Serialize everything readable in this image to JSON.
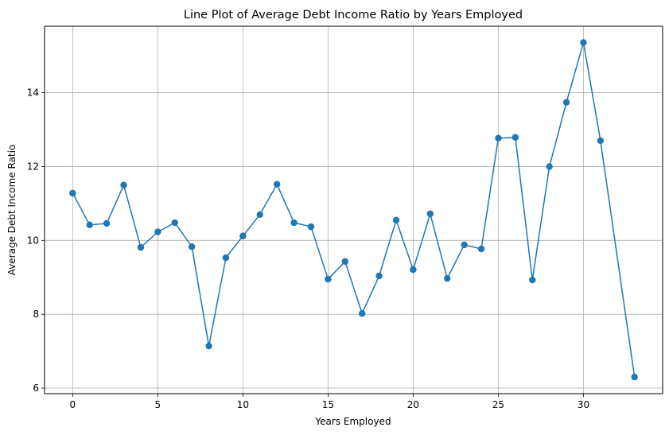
{
  "chart_data": {
    "type": "line",
    "title": "Line Plot of Average Debt Income Ratio by Years Employed",
    "xlabel": "Years Employed",
    "ylabel": "Average Debt Income Ratio",
    "xlim": [
      -1.65,
      34.65
    ],
    "ylim": [
      5.85,
      15.8
    ],
    "xticks": [
      0,
      5,
      10,
      15,
      20,
      25,
      30
    ],
    "yticks": [
      6,
      8,
      10,
      12,
      14
    ],
    "grid": true,
    "marker": "circle",
    "color": "#1f77b4",
    "series": [
      {
        "x": [
          0,
          1,
          2,
          3,
          4,
          5,
          6,
          7,
          8,
          9,
          10,
          11,
          12,
          13,
          14,
          15,
          16,
          17,
          18,
          19,
          20,
          21,
          22,
          23,
          24,
          25,
          26,
          27,
          28,
          29,
          30,
          31,
          33
        ],
        "y": [
          11.28,
          10.42,
          10.46,
          11.5,
          9.81,
          10.23,
          10.48,
          9.83,
          7.14,
          9.53,
          10.12,
          10.7,
          11.52,
          10.48,
          10.37,
          8.95,
          9.43,
          8.02,
          9.04,
          10.55,
          9.21,
          10.72,
          8.97,
          9.88,
          9.77,
          12.77,
          12.79,
          8.93,
          12.0,
          13.74,
          15.36,
          12.7,
          6.3
        ]
      }
    ]
  }
}
